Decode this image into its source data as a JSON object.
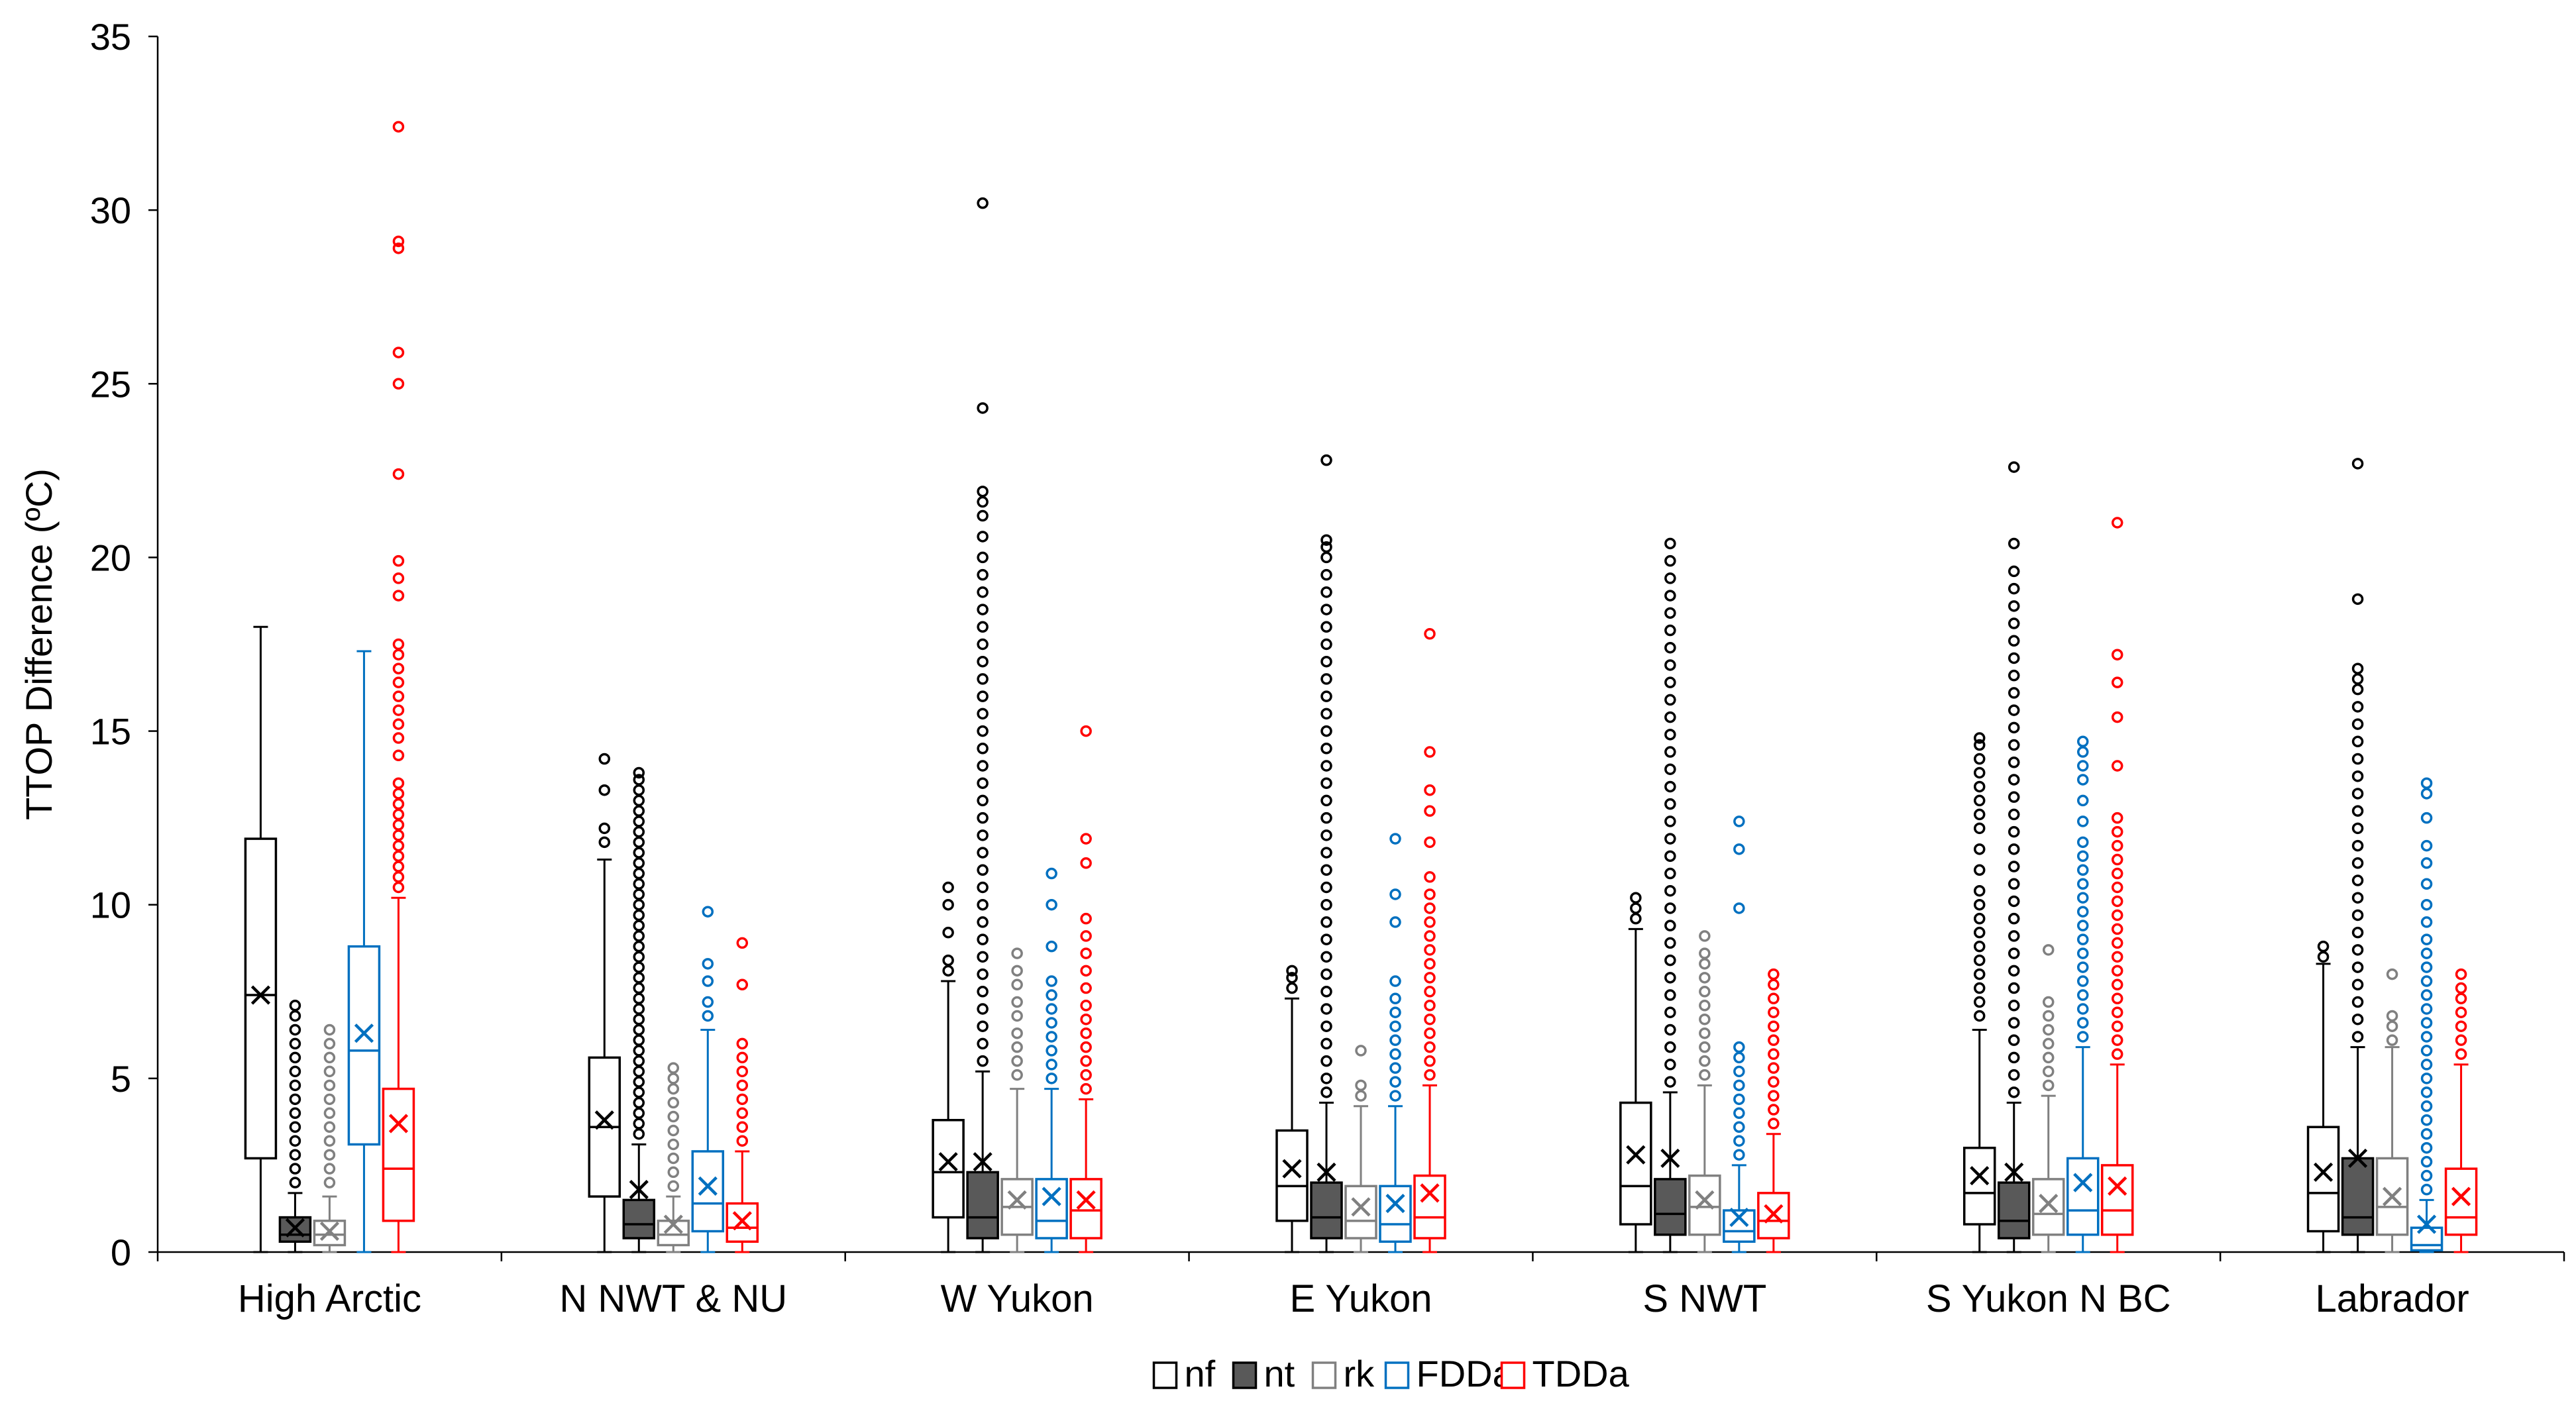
{
  "chart_data": {
    "type": "box",
    "title": "",
    "xlabel": "",
    "ylabel": "TTOP Difference (ºC)",
    "ylim": [
      0,
      35
    ],
    "yticks": [
      0,
      5,
      10,
      15,
      20,
      25,
      30,
      35
    ],
    "grid": false,
    "legend_position": "bottom-center",
    "categories": [
      "High Arctic",
      "N NWT & NU",
      "W Yukon",
      "E Yukon",
      "S NWT",
      "S Yukon N BC",
      "Labrador"
    ],
    "series": [
      {
        "name": "nf",
        "color": "#000000",
        "fill": "#ffffff",
        "boxes": [
          {
            "min": 0,
            "q1": 2.7,
            "median": 7.4,
            "q3": 11.9,
            "max": 18.0,
            "mean": 7.4,
            "outliers": []
          },
          {
            "min": 0,
            "q1": 1.6,
            "median": 3.6,
            "q3": 5.6,
            "max": 11.3,
            "mean": 3.8,
            "outliers": [
              11.8,
              12.2,
              13.3,
              14.2
            ]
          },
          {
            "min": 0,
            "q1": 1.0,
            "median": 2.3,
            "q3": 3.8,
            "max": 7.8,
            "mean": 2.6,
            "outliers": [
              8.1,
              8.4,
              9.2,
              10.0,
              10.5
            ]
          },
          {
            "min": 0,
            "q1": 0.9,
            "median": 1.9,
            "q3": 3.5,
            "max": 7.3,
            "mean": 2.4,
            "outliers": [
              7.6,
              7.9,
              8.1
            ]
          },
          {
            "min": 0,
            "q1": 0.8,
            "median": 1.9,
            "q3": 4.3,
            "max": 9.3,
            "mean": 2.8,
            "outliers": [
              9.6,
              9.9,
              10.2
            ]
          },
          {
            "min": 0,
            "q1": 0.8,
            "median": 1.7,
            "q3": 3.0,
            "max": 6.4,
            "mean": 2.2,
            "outliers": [
              6.8,
              7.2,
              7.6,
              8.0,
              8.4,
              8.8,
              9.2,
              9.6,
              10.0,
              10.4,
              11.0,
              11.6,
              12.2,
              12.6,
              13.0,
              13.4,
              13.8,
              14.2,
              14.6,
              14.8
            ]
          },
          {
            "min": 0,
            "q1": 0.6,
            "median": 1.7,
            "q3": 3.6,
            "max": 8.3,
            "mean": 2.3,
            "outliers": [
              8.5,
              8.8
            ]
          }
        ]
      },
      {
        "name": "nt",
        "color": "#000000",
        "fill": "#595959",
        "boxes": [
          {
            "min": 0,
            "q1": 0.3,
            "median": 0.5,
            "q3": 1.0,
            "max": 1.7,
            "mean": 0.7,
            "outliers": [
              2.0,
              2.4,
              2.8,
              3.2,
              3.6,
              4.0,
              4.4,
              4.8,
              5.2,
              5.6,
              6.0,
              6.4,
              6.8,
              7.1
            ]
          },
          {
            "min": 0,
            "q1": 0.4,
            "median": 0.8,
            "q3": 1.5,
            "max": 3.1,
            "mean": 1.8,
            "outliers": [
              3.4,
              3.7,
              4.0,
              4.3,
              4.6,
              4.9,
              5.2,
              5.5,
              5.8,
              6.1,
              6.4,
              6.7,
              7.0,
              7.3,
              7.6,
              7.9,
              8.2,
              8.5,
              8.8,
              9.1,
              9.4,
              9.7,
              10.0,
              10.3,
              10.6,
              10.9,
              11.2,
              11.5,
              11.8,
              12.1,
              12.4,
              12.7,
              13.0,
              13.3,
              13.6,
              13.8
            ]
          },
          {
            "min": 0,
            "q1": 0.4,
            "median": 1.0,
            "q3": 2.3,
            "max": 5.2,
            "mean": 2.6,
            "outliers": [
              5.5,
              6.0,
              6.5,
              7.0,
              7.5,
              8.0,
              8.5,
              9.0,
              9.5,
              10.0,
              10.5,
              11.0,
              11.5,
              12.0,
              12.5,
              13.0,
              13.5,
              14.0,
              14.5,
              15.0,
              15.5,
              16.0,
              16.5,
              17.0,
              17.5,
              18.0,
              18.5,
              19.0,
              19.5,
              20.0,
              20.6,
              21.2,
              21.6,
              21.9,
              24.3,
              30.2
            ]
          },
          {
            "min": 0,
            "q1": 0.4,
            "median": 1.0,
            "q3": 2.0,
            "max": 4.3,
            "mean": 2.3,
            "outliers": [
              4.6,
              5.0,
              5.5,
              6.0,
              6.5,
              7.0,
              7.5,
              8.0,
              8.5,
              9.0,
              9.5,
              10.0,
              10.5,
              11.0,
              11.5,
              12.0,
              12.5,
              13.0,
              13.5,
              14.0,
              14.5,
              15.0,
              15.5,
              16.0,
              16.5,
              17.0,
              17.5,
              18.0,
              18.5,
              19.0,
              19.5,
              20.0,
              20.3,
              20.5,
              22.8
            ]
          },
          {
            "min": 0,
            "q1": 0.5,
            "median": 1.1,
            "q3": 2.1,
            "max": 4.6,
            "mean": 2.7,
            "outliers": [
              4.9,
              5.4,
              5.9,
              6.4,
              6.9,
              7.4,
              7.9,
              8.4,
              8.9,
              9.4,
              9.9,
              10.4,
              10.9,
              11.4,
              11.9,
              12.4,
              12.9,
              13.4,
              13.9,
              14.4,
              14.9,
              15.4,
              15.9,
              16.4,
              16.9,
              17.4,
              17.9,
              18.4,
              18.9,
              19.4,
              19.9,
              20.4
            ]
          },
          {
            "min": 0,
            "q1": 0.4,
            "median": 0.9,
            "q3": 2.0,
            "max": 4.3,
            "mean": 2.3,
            "outliers": [
              4.6,
              5.1,
              5.6,
              6.1,
              6.6,
              7.1,
              7.6,
              8.1,
              8.6,
              9.1,
              9.6,
              10.1,
              10.6,
              11.1,
              11.6,
              12.1,
              12.6,
              13.1,
              13.6,
              14.1,
              14.6,
              15.1,
              15.6,
              16.1,
              16.6,
              17.1,
              17.6,
              18.1,
              18.6,
              19.1,
              19.6,
              20.4,
              22.6
            ]
          },
          {
            "min": 0,
            "q1": 0.5,
            "median": 1.0,
            "q3": 2.7,
            "max": 5.9,
            "mean": 2.7,
            "outliers": [
              6.2,
              6.7,
              7.2,
              7.7,
              8.2,
              8.7,
              9.2,
              9.7,
              10.2,
              10.7,
              11.2,
              11.7,
              12.2,
              12.7,
              13.2,
              13.7,
              14.2,
              14.7,
              15.2,
              15.7,
              16.2,
              16.5,
              16.8,
              18.8,
              22.7
            ]
          }
        ]
      },
      {
        "name": "rk",
        "color": "#808080",
        "fill": "#ffffff",
        "boxes": [
          {
            "min": 0,
            "q1": 0.2,
            "median": 0.5,
            "q3": 0.9,
            "max": 1.6,
            "mean": 0.6,
            "outliers": [
              2.0,
              2.4,
              2.8,
              3.2,
              3.6,
              4.0,
              4.4,
              4.8,
              5.2,
              5.6,
              6.0,
              6.4
            ]
          },
          {
            "min": 0,
            "q1": 0.2,
            "median": 0.5,
            "q3": 0.9,
            "max": 1.6,
            "mean": 0.8,
            "outliers": [
              1.9,
              2.3,
              2.7,
              3.1,
              3.5,
              3.9,
              4.3,
              4.7,
              5.0,
              5.3
            ]
          },
          {
            "min": 0,
            "q1": 0.5,
            "median": 1.3,
            "q3": 2.1,
            "max": 4.7,
            "mean": 1.5,
            "outliers": [
              5.1,
              5.5,
              5.9,
              6.3,
              6.8,
              7.2,
              7.7,
              8.1,
              8.6
            ]
          },
          {
            "min": 0,
            "q1": 0.4,
            "median": 0.9,
            "q3": 1.9,
            "max": 4.2,
            "mean": 1.3,
            "outliers": [
              4.5,
              4.8,
              5.8
            ]
          },
          {
            "min": 0,
            "q1": 0.5,
            "median": 1.3,
            "q3": 2.2,
            "max": 4.8,
            "mean": 1.5,
            "outliers": [
              5.1,
              5.5,
              5.9,
              6.3,
              6.7,
              7.1,
              7.5,
              7.9,
              8.3,
              8.6,
              9.1
            ]
          },
          {
            "min": 0,
            "q1": 0.5,
            "median": 1.1,
            "q3": 2.1,
            "max": 4.5,
            "mean": 1.4,
            "outliers": [
              4.8,
              5.2,
              5.6,
              6.0,
              6.4,
              6.8,
              7.2,
              8.7
            ]
          },
          {
            "min": 0,
            "q1": 0.5,
            "median": 1.3,
            "q3": 2.7,
            "max": 5.9,
            "mean": 1.6,
            "outliers": [
              6.1,
              6.5,
              6.8,
              8.0
            ]
          }
        ]
      },
      {
        "name": "FDDa",
        "color": "#0070C0",
        "fill": "#ffffff",
        "boxes": [
          {
            "min": 0,
            "q1": 3.1,
            "median": 5.8,
            "q3": 8.8,
            "max": 17.3,
            "mean": 6.3,
            "outliers": []
          },
          {
            "min": 0,
            "q1": 0.6,
            "median": 1.4,
            "q3": 2.9,
            "max": 6.4,
            "mean": 1.9,
            "outliers": [
              6.8,
              7.2,
              7.8,
              8.3,
              9.8
            ]
          },
          {
            "min": 0,
            "q1": 0.4,
            "median": 0.9,
            "q3": 2.1,
            "max": 4.7,
            "mean": 1.6,
            "outliers": [
              5.0,
              5.4,
              5.8,
              6.2,
              6.6,
              7.0,
              7.4,
              7.8,
              8.8,
              10.0,
              10.9
            ]
          },
          {
            "min": 0,
            "q1": 0.3,
            "median": 0.8,
            "q3": 1.9,
            "max": 4.2,
            "mean": 1.4,
            "outliers": [
              4.5,
              4.9,
              5.3,
              5.7,
              6.1,
              6.5,
              6.9,
              7.3,
              7.8,
              9.5,
              10.3,
              11.9
            ]
          },
          {
            "min": 0,
            "q1": 0.3,
            "median": 0.6,
            "q3": 1.2,
            "max": 2.5,
            "mean": 1.0,
            "outliers": [
              2.8,
              3.2,
              3.6,
              4.0,
              4.4,
              4.8,
              5.2,
              5.6,
              5.9,
              9.9,
              11.6,
              12.4
            ]
          },
          {
            "min": 0,
            "q1": 0.5,
            "median": 1.2,
            "q3": 2.7,
            "max": 5.9,
            "mean": 2.0,
            "outliers": [
              6.2,
              6.6,
              7.0,
              7.4,
              7.8,
              8.2,
              8.6,
              9.0,
              9.4,
              9.8,
              10.2,
              10.6,
              11.0,
              11.4,
              11.8,
              12.4,
              13.0,
              13.6,
              14.0,
              14.4,
              14.7
            ]
          },
          {
            "min": 0,
            "q1": 0.05,
            "median": 0.2,
            "q3": 0.7,
            "max": 1.5,
            "mean": 0.8,
            "outliers": [
              1.8,
              2.2,
              2.6,
              3.0,
              3.4,
              3.8,
              4.2,
              4.6,
              5.0,
              5.4,
              5.8,
              6.2,
              6.6,
              7.0,
              7.4,
              7.8,
              8.2,
              8.6,
              9.0,
              9.5,
              10.0,
              10.6,
              11.2,
              11.7,
              12.5,
              13.2,
              13.5
            ]
          }
        ]
      },
      {
        "name": "TDDa",
        "color": "#FF0000",
        "fill": "#ffffff",
        "boxes": [
          {
            "min": 0,
            "q1": 0.9,
            "median": 2.4,
            "q3": 4.7,
            "max": 10.2,
            "mean": 3.7,
            "outliers": [
              10.5,
              10.8,
              11.1,
              11.4,
              11.7,
              12.0,
              12.3,
              12.6,
              12.9,
              13.2,
              13.5,
              14.3,
              14.8,
              15.2,
              15.6,
              16.0,
              16.4,
              16.8,
              17.2,
              17.5,
              18.9,
              19.4,
              19.9,
              22.4,
              25.0,
              25.9,
              28.9,
              29.1,
              32.4
            ]
          },
          {
            "min": 0,
            "q1": 0.3,
            "median": 0.7,
            "q3": 1.4,
            "max": 2.9,
            "mean": 0.9,
            "outliers": [
              3.2,
              3.6,
              4.0,
              4.4,
              4.8,
              5.2,
              5.6,
              6.0,
              7.7,
              8.9
            ]
          },
          {
            "min": 0,
            "q1": 0.4,
            "median": 1.2,
            "q3": 2.1,
            "max": 4.4,
            "mean": 1.5,
            "outliers": [
              4.7,
              5.1,
              5.5,
              5.9,
              6.3,
              6.7,
              7.1,
              7.6,
              8.1,
              8.6,
              9.1,
              9.6,
              11.2,
              11.9,
              15.0
            ]
          },
          {
            "min": 0,
            "q1": 0.4,
            "median": 1.0,
            "q3": 2.2,
            "max": 4.8,
            "mean": 1.7,
            "outliers": [
              5.1,
              5.5,
              5.9,
              6.3,
              6.7,
              7.1,
              7.5,
              7.9,
              8.3,
              8.7,
              9.1,
              9.5,
              9.9,
              10.3,
              10.8,
              11.8,
              12.7,
              13.3,
              14.4,
              17.8
            ]
          },
          {
            "min": 0,
            "q1": 0.4,
            "median": 0.9,
            "q3": 1.7,
            "max": 3.4,
            "mean": 1.1,
            "outliers": [
              3.7,
              4.1,
              4.5,
              4.9,
              5.3,
              5.7,
              6.1,
              6.5,
              6.9,
              7.3,
              7.7,
              8.0
            ]
          },
          {
            "min": 0,
            "q1": 0.5,
            "median": 1.2,
            "q3": 2.5,
            "max": 5.4,
            "mean": 1.9,
            "outliers": [
              5.7,
              6.1,
              6.5,
              6.9,
              7.3,
              7.7,
              8.1,
              8.5,
              8.9,
              9.3,
              9.7,
              10.1,
              10.5,
              10.9,
              11.3,
              11.7,
              12.1,
              12.5,
              14.0,
              15.4,
              16.4,
              17.2,
              21.0
            ]
          },
          {
            "min": 0,
            "q1": 0.5,
            "median": 1.0,
            "q3": 2.4,
            "max": 5.4,
            "mean": 1.6,
            "outliers": [
              5.7,
              6.1,
              6.5,
              6.9,
              7.3,
              7.6,
              8.0
            ]
          }
        ]
      }
    ]
  }
}
